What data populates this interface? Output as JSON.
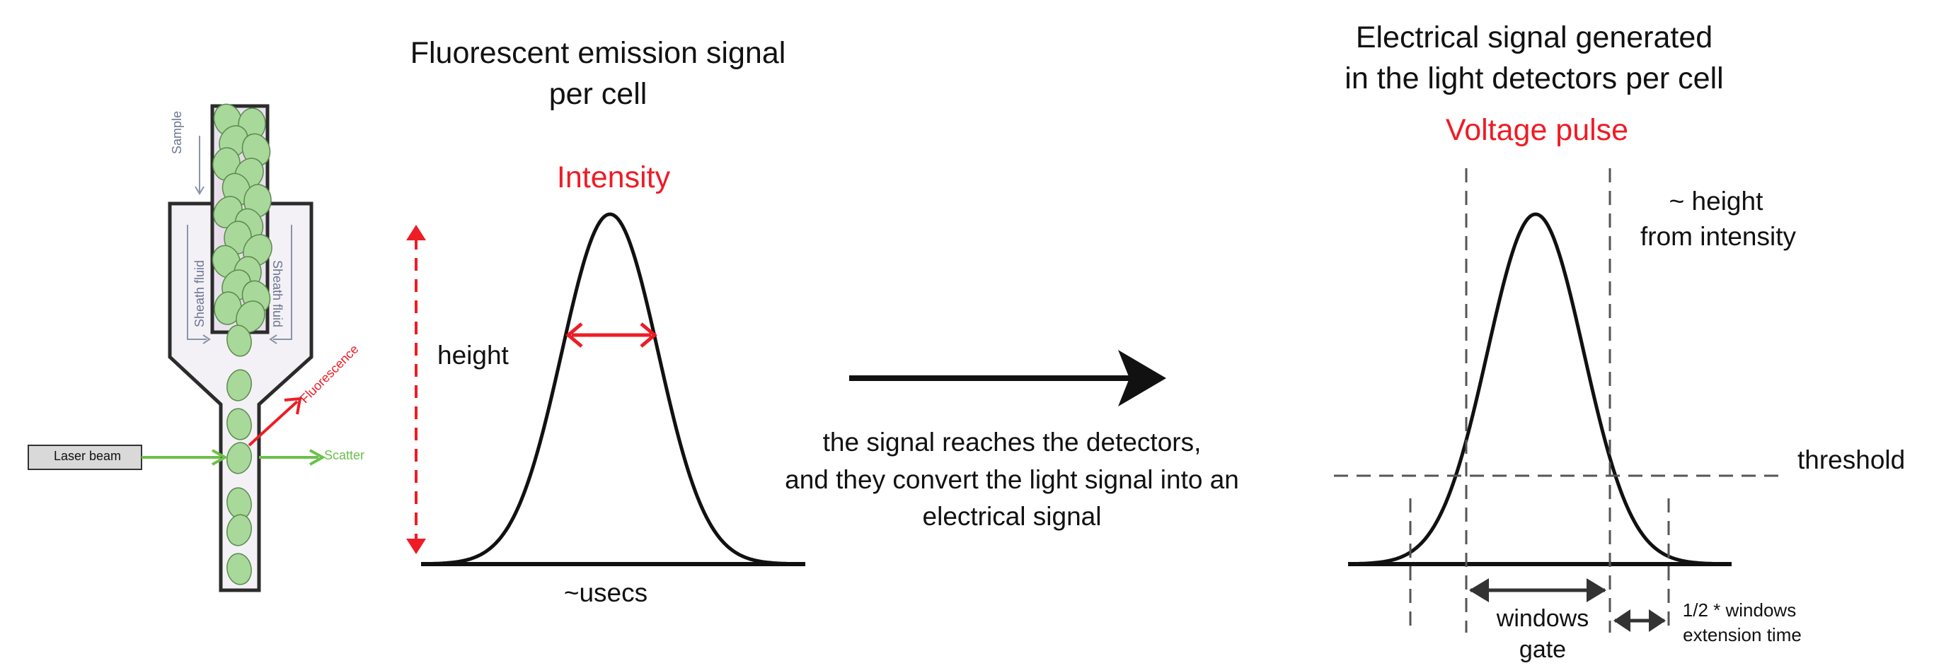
{
  "flow_cell": {
    "sample_label": "Sample",
    "sheath_left": "Sheath fluid",
    "sheath_right": "Sheath fluid",
    "laser_label": "Laser beam",
    "scatter_label": "Scatter",
    "fluorescence_label": "Fluorescence"
  },
  "emission": {
    "title_line1": "Fluorescent emission signal",
    "title_line2": "per cell",
    "intensity_label": "Intensity",
    "height_label": "height",
    "time_label": "~usecs"
  },
  "transition": {
    "line1": "the signal reaches the detectors,",
    "line2": "and they convert the light signal into an",
    "line3": "electrical signal"
  },
  "electrical": {
    "title_line1": "Electrical signal generated",
    "title_line2": "in the light detectors per cell",
    "pulse_label": "Voltage pulse",
    "height_note_line1": "~ height",
    "height_note_line2": "from intensity",
    "threshold_label": "threshold",
    "window_label_line1": "windows",
    "window_label_line2": "gate",
    "extension_line1": "1/2 * windows",
    "extension_line2": "extension time"
  },
  "colors": {
    "accent_red": "#ee1c25",
    "cell_green": "#a8d89a",
    "laser_green": "#6cc04a",
    "dark": "#111111",
    "dash_gray": "#555555"
  }
}
